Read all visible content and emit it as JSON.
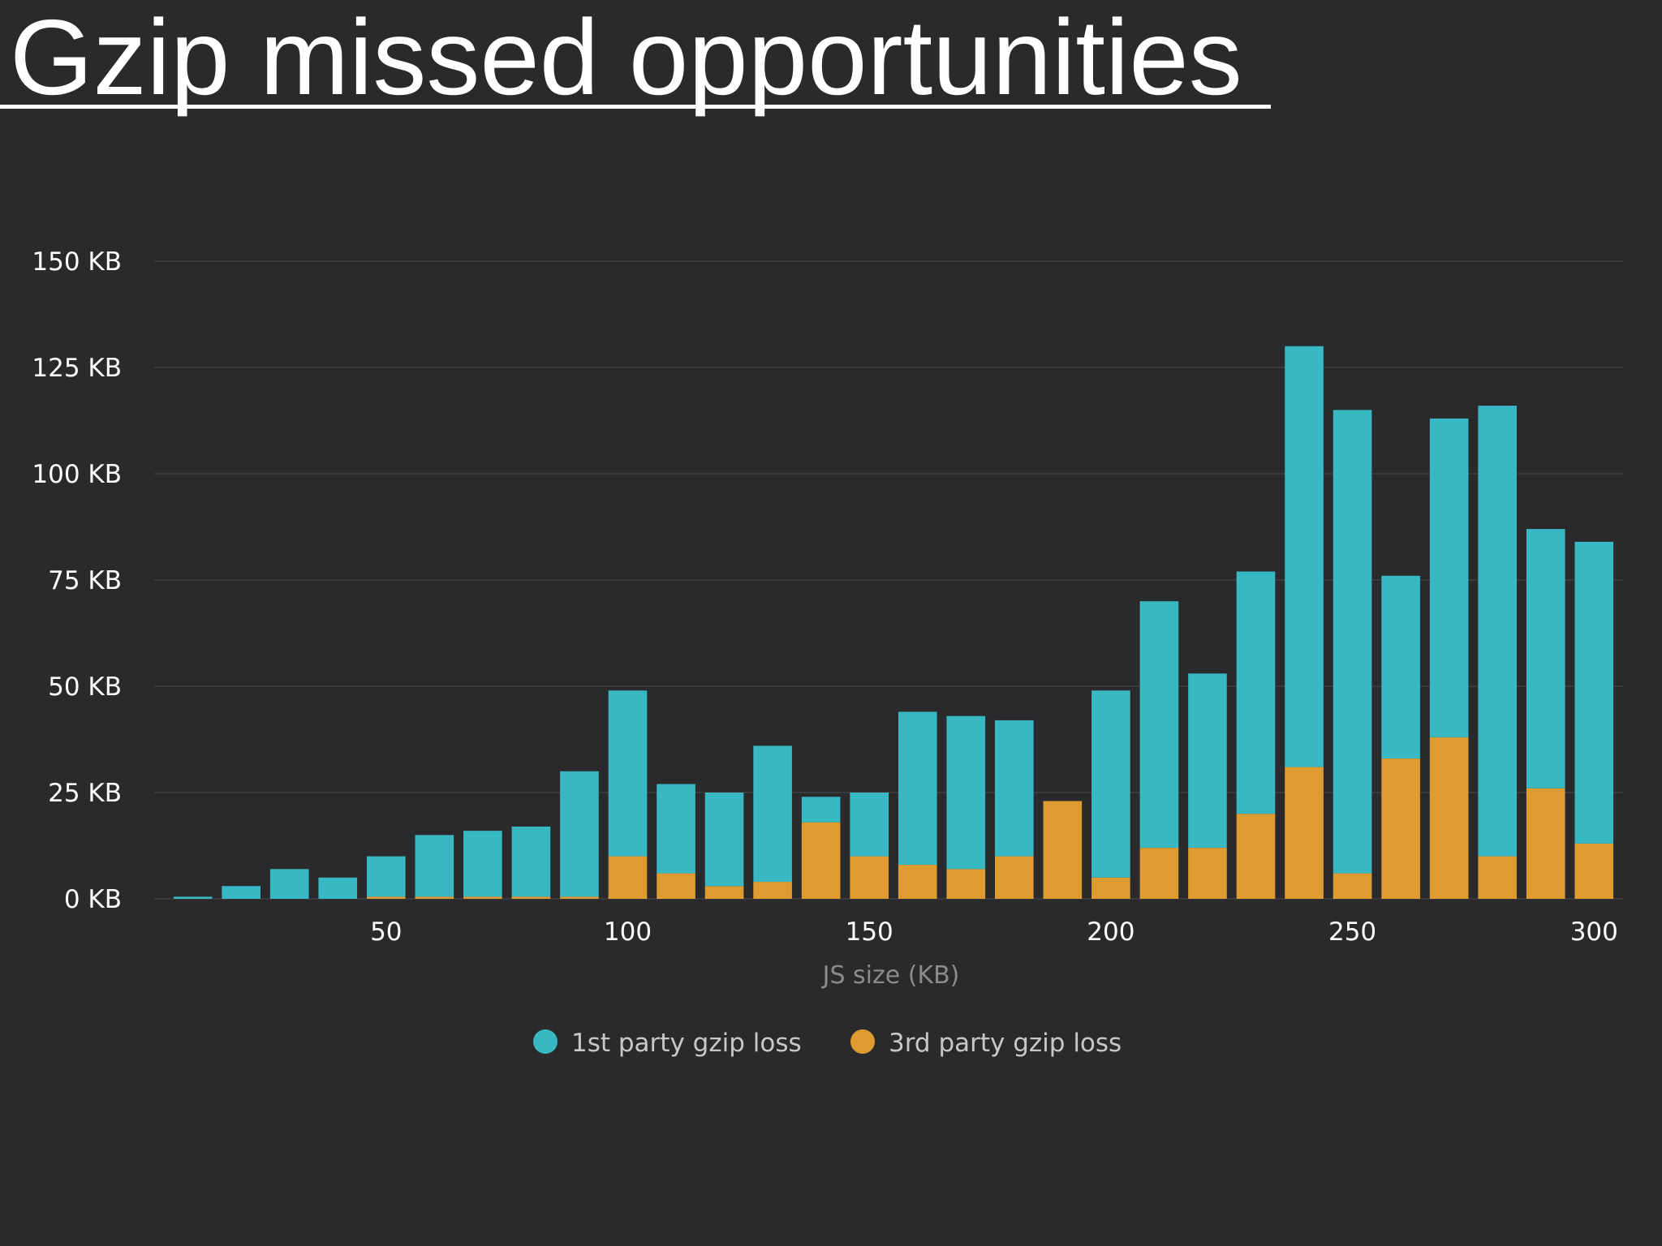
{
  "slide": {
    "title": "Gzip missed opportunities"
  },
  "colors": {
    "background": "#2a2a2c",
    "first_party": "#38b8c2",
    "third_party": "#de9b30",
    "gridline": "#3a3a3c",
    "axis_label": "#8b8b8d"
  },
  "chart_data": {
    "type": "bar",
    "stacked": true,
    "title": "",
    "xlabel": "JS size (KB)",
    "ylabel": "",
    "ylim": [
      0,
      150
    ],
    "y_ticks": [
      0,
      25,
      50,
      75,
      100,
      125,
      150
    ],
    "y_tick_labels": [
      "0 KB",
      "25 KB",
      "50 KB",
      "75 KB",
      "100 KB",
      "125 KB",
      "150 KB"
    ],
    "x_ticks": [
      50,
      100,
      150,
      200,
      250,
      300
    ],
    "x_tick_labels": [
      "50",
      "100",
      "150",
      "200",
      "250",
      "300"
    ],
    "xlim": [
      2,
      306
    ],
    "bin_width": 10,
    "x": [
      10,
      20,
      30,
      40,
      50,
      60,
      70,
      80,
      90,
      100,
      110,
      120,
      130,
      140,
      150,
      160,
      170,
      180,
      190,
      200,
      210,
      220,
      230,
      240,
      250,
      260,
      270,
      280,
      290,
      300
    ],
    "series": [
      {
        "name": "3rd party gzip loss",
        "color": "#de9b30",
        "values": [
          0,
          0,
          0,
          0,
          0.5,
          0.5,
          0.5,
          0.5,
          0.5,
          10,
          6,
          3,
          4,
          18,
          10,
          8,
          7,
          10,
          23,
          5,
          12,
          12,
          20,
          31,
          6,
          33,
          38,
          10,
          26,
          13
        ]
      },
      {
        "name": "1st party gzip loss",
        "color": "#38b8c2",
        "values": [
          0.5,
          3,
          7,
          5,
          9.5,
          14.5,
          15.5,
          16.5,
          29.5,
          39,
          21,
          22,
          32,
          6,
          15,
          36,
          36,
          32,
          0,
          44,
          58,
          41,
          57,
          99,
          109,
          43,
          75,
          106,
          61,
          71
        ]
      }
    ],
    "legend": {
      "position": "bottom-center",
      "entries": [
        {
          "label": "1st party gzip loss",
          "color": "#38b8c2"
        },
        {
          "label": "3rd party gzip loss",
          "color": "#de9b30"
        }
      ]
    }
  }
}
